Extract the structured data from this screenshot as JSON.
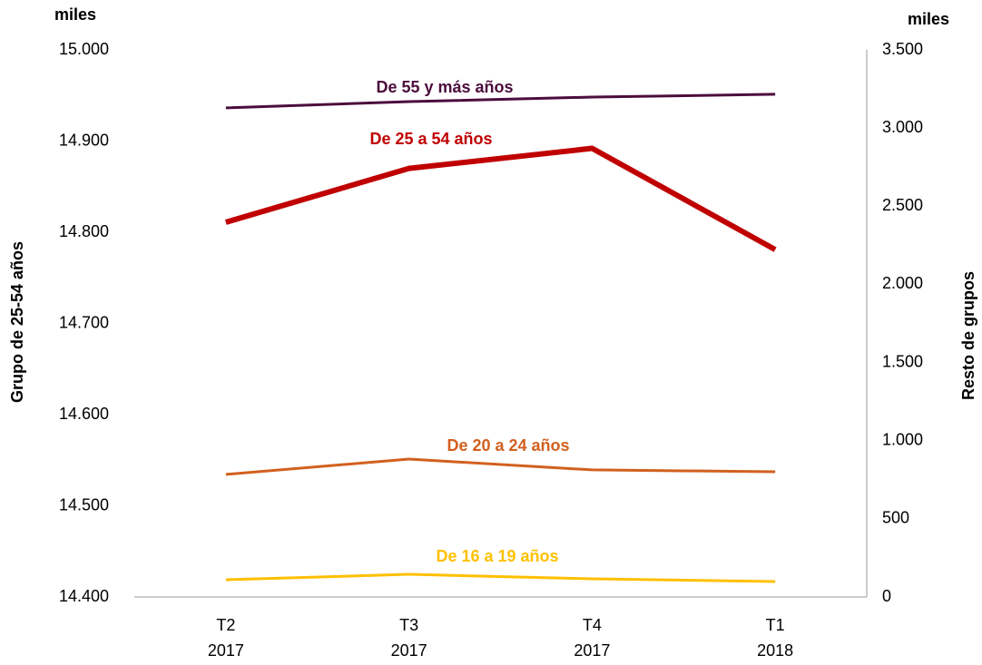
{
  "chart_data": {
    "type": "line",
    "y_unit": "miles",
    "y2_unit": "miles",
    "y_label": "Grupo de 25-54 años",
    "y2_label": "Resto de grupos",
    "categories": [
      "T2\n2017",
      "T3\n2017",
      "T4\n2017",
      "T1\n2018"
    ],
    "ylim": [
      14400,
      15000
    ],
    "yticks": [
      {
        "value": 14400,
        "label": "14.400"
      },
      {
        "value": 14500,
        "label": "14.500"
      },
      {
        "value": 14600,
        "label": "14.600"
      },
      {
        "value": 14700,
        "label": "14.700"
      },
      {
        "value": 14800,
        "label": "14.800"
      },
      {
        "value": 14900,
        "label": "14.900"
      },
      {
        "value": 15000,
        "label": "15.000"
      }
    ],
    "y2lim": [
      0,
      3500
    ],
    "y2ticks": [
      0,
      500,
      {
        "value": 1000,
        "label": "1.000"
      },
      {
        "value": 1500,
        "label": "1.500"
      },
      {
        "value": 2000,
        "label": "2.000"
      },
      {
        "value": 2500,
        "label": "2.500"
      },
      {
        "value": 3000,
        "label": "3.000"
      },
      {
        "value": 3500,
        "label": "3.500"
      }
    ],
    "series": [
      {
        "name": "De 55 y más años",
        "color": "#4b0d3c",
        "axis": "y2",
        "values": [
          3129,
          3169,
          3198,
          3216
        ]
      },
      {
        "name": "De 25 a 54 años",
        "color": "#c00000",
        "axis": "y",
        "values": [
          14811,
          14870,
          14892,
          14781
        ]
      },
      {
        "name": "De 20 a 24 años",
        "color": "#d2601e",
        "axis": "y2",
        "values": [
          784,
          882,
          813,
          801
        ]
      },
      {
        "name": "De 16 a 19 años",
        "color": "#ffc000",
        "axis": "y2",
        "values": [
          110,
          145,
          116,
          99
        ]
      }
    ]
  }
}
